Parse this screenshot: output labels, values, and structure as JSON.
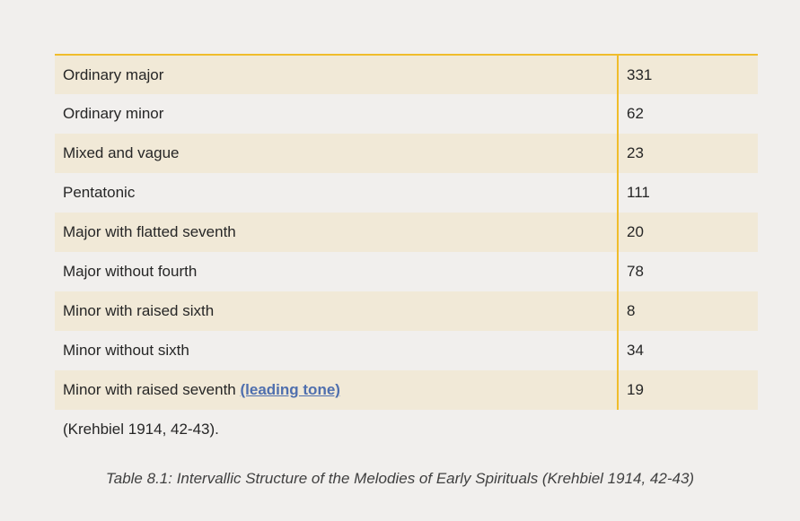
{
  "table": {
    "rows": [
      {
        "label": "Ordinary major",
        "value": "331"
      },
      {
        "label": "Ordinary minor",
        "value": "62"
      },
      {
        "label": "Mixed and vague",
        "value": "23"
      },
      {
        "label": "Pentatonic",
        "value": "111"
      },
      {
        "label": "Major with flatted seventh",
        "value": "20"
      },
      {
        "label": "Major without fourth",
        "value": "78"
      },
      {
        "label": "Minor with raised sixth",
        "value": "8"
      },
      {
        "label": "Minor without sixth",
        "value": "34"
      },
      {
        "label": "Minor with raised seventh",
        "link": "(leading tone)",
        "value": "19"
      }
    ]
  },
  "source_note": "(Krehbiel 1914, 42-43).",
  "caption": "Table 8.1: Intervallic Structure of the Melodies of Early Spirituals (Krehbiel 1914, 42-43)",
  "colors": {
    "rule": "#f0bd2c",
    "row_shade": "#f1e9d7",
    "background": "#f1efed",
    "link": "#4f6fae"
  }
}
